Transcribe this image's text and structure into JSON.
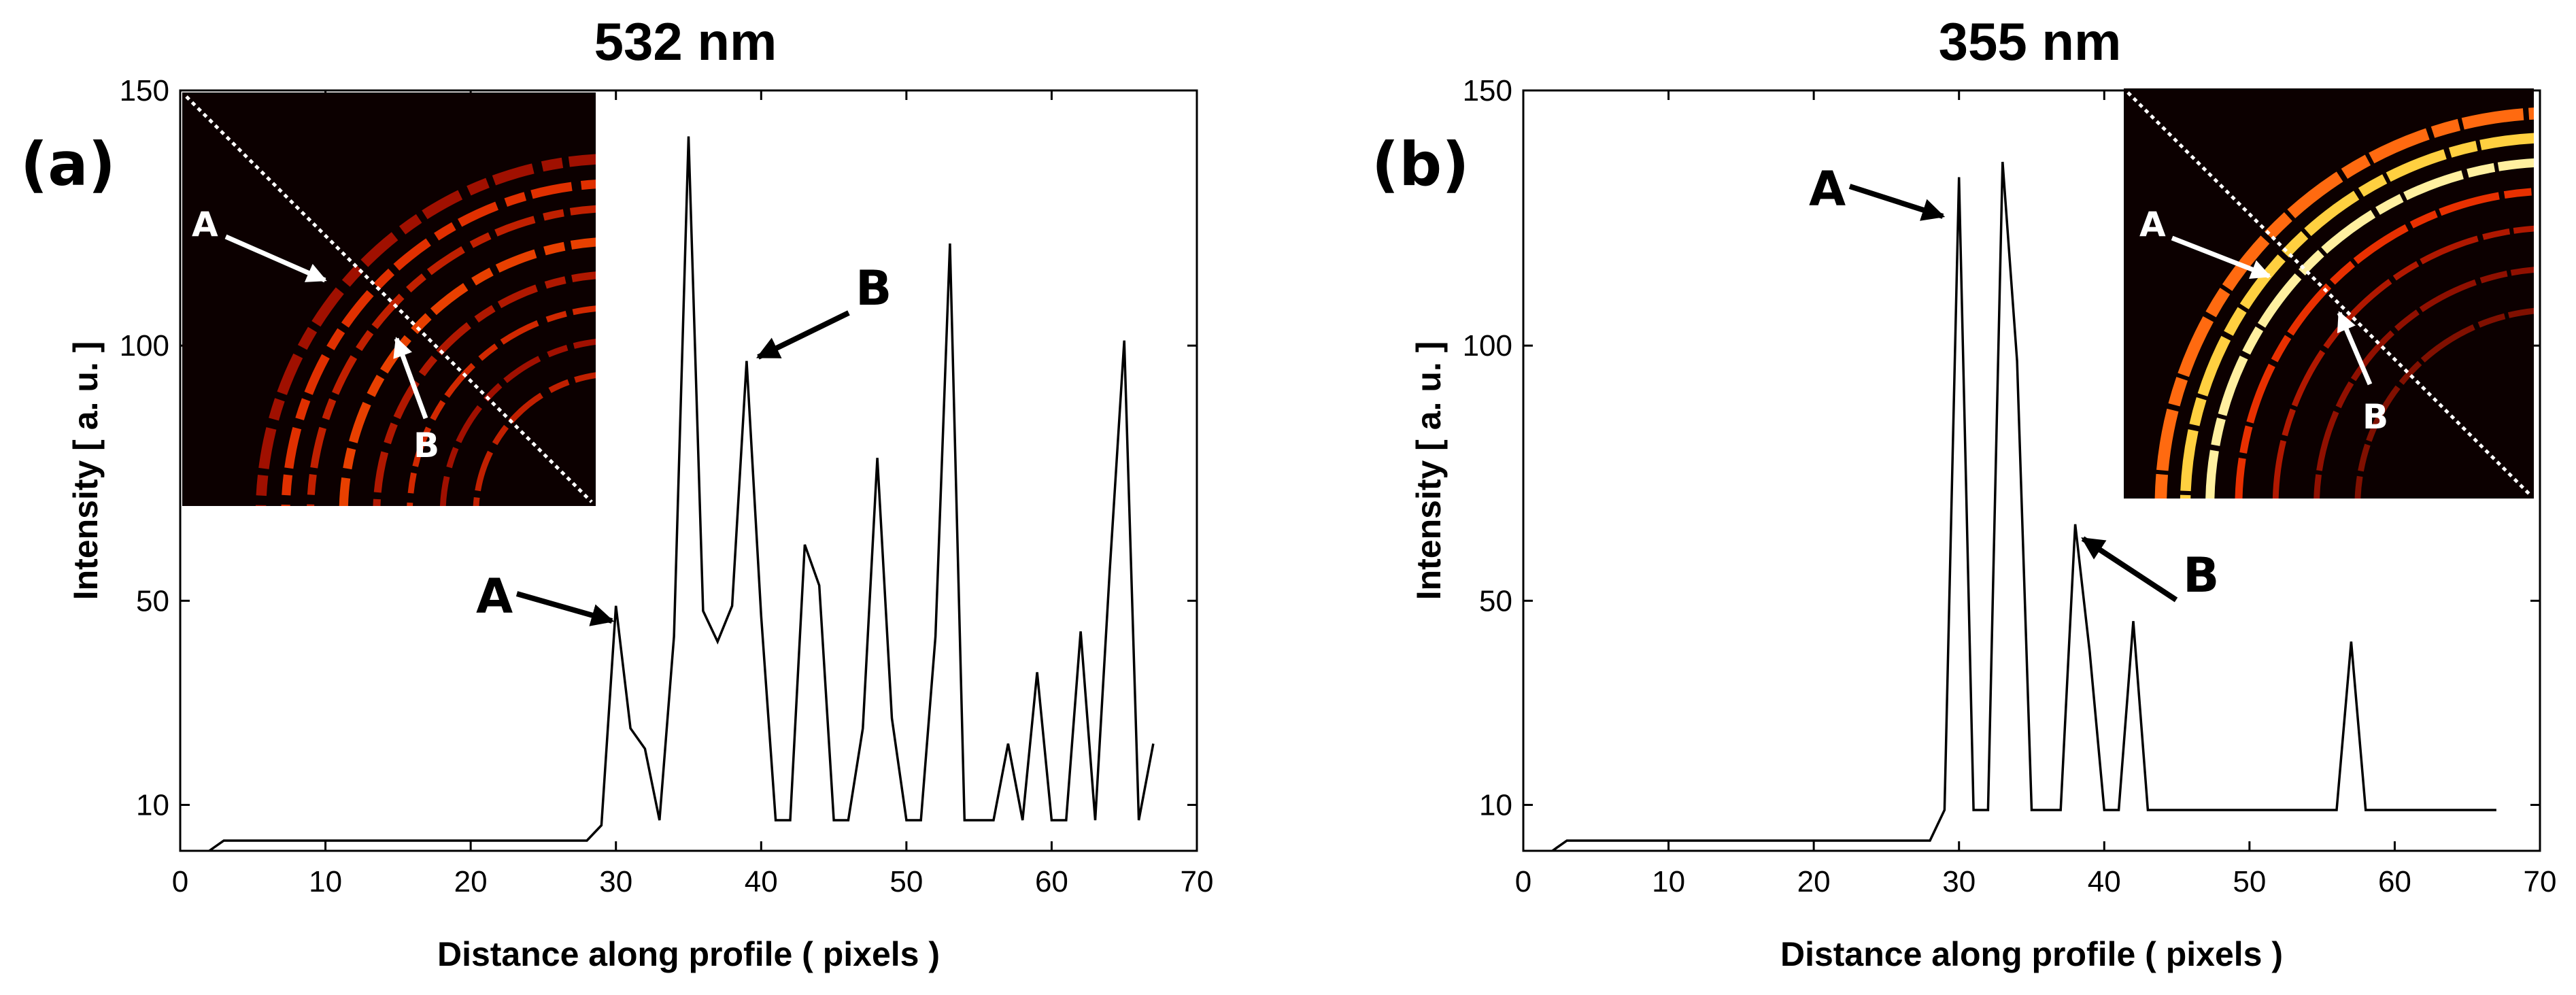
{
  "chart_data": [
    {
      "type": "line",
      "panel_label": "(a)",
      "title": "532 nm",
      "xlabel": "Distance along profile ( pixels )",
      "ylabel": "Intensity [ a. u. ]",
      "xlim": [
        0,
        70
      ],
      "ylim": [
        1,
        150
      ],
      "xticks": [
        0,
        10,
        20,
        30,
        40,
        50,
        60,
        70
      ],
      "yticks": [
        10,
        50,
        100,
        150
      ],
      "x": [
        2,
        3,
        4,
        5,
        6,
        7,
        8,
        9,
        10,
        11,
        12,
        13,
        14,
        15,
        16,
        17,
        18,
        19,
        20,
        21,
        22,
        23,
        24,
        25,
        26,
        27,
        28,
        29,
        30,
        31,
        32,
        33,
        34,
        35,
        36,
        37,
        38,
        39,
        40,
        41,
        42,
        43,
        44,
        45,
        46,
        47,
        48,
        49,
        50,
        51,
        52,
        53,
        54,
        55,
        56,
        57,
        58,
        59,
        60,
        61,
        62,
        63,
        64,
        65,
        66,
        67
      ],
      "y": [
        1,
        3,
        3,
        3,
        3,
        3,
        3,
        3,
        3,
        3,
        3,
        3,
        3,
        3,
        3,
        3,
        3,
        3,
        3,
        3,
        3,
        3,
        3,
        3,
        3,
        3,
        3,
        6,
        49,
        25,
        21,
        7,
        43,
        141,
        48,
        42,
        49,
        97,
        47,
        7,
        7,
        61,
        53,
        7,
        7,
        25,
        78,
        27,
        7,
        7,
        43,
        120,
        7,
        7,
        7,
        22,
        7,
        36,
        7,
        7,
        44,
        7,
        56,
        101,
        7,
        22
      ],
      "annotations": [
        {
          "label": "A",
          "x": 30,
          "y": 49
        },
        {
          "label": "B",
          "x": 39,
          "y": 97
        }
      ],
      "inset_labels": [
        "A",
        "B"
      ]
    },
    {
      "type": "line",
      "panel_label": "(b)",
      "title": "355 nm",
      "xlabel": "Distance along profile ( pixels )",
      "ylabel": "Intensity [ a. u. ]",
      "xlim": [
        0,
        70
      ],
      "ylim": [
        1,
        150
      ],
      "xticks": [
        0,
        10,
        20,
        30,
        40,
        50,
        60,
        70
      ],
      "yticks": [
        10,
        50,
        100,
        150
      ],
      "x": [
        2,
        3,
        4,
        5,
        6,
        7,
        8,
        9,
        10,
        11,
        12,
        13,
        14,
        15,
        16,
        17,
        18,
        19,
        20,
        21,
        22,
        23,
        24,
        25,
        26,
        27,
        28,
        29,
        30,
        31,
        32,
        33,
        34,
        35,
        36,
        37,
        38,
        39,
        40,
        41,
        42,
        43,
        44,
        45,
        46,
        47,
        48,
        49,
        50,
        51,
        52,
        53,
        54,
        55,
        56,
        57,
        58,
        59,
        60,
        61,
        62,
        63,
        64,
        65,
        66,
        67
      ],
      "y": [
        1,
        3,
        3,
        3,
        3,
        3,
        3,
        3,
        3,
        3,
        3,
        3,
        3,
        3,
        3,
        3,
        3,
        3,
        3,
        3,
        3,
        3,
        3,
        3,
        3,
        3,
        3,
        9,
        133,
        9,
        9,
        136,
        97,
        9,
        9,
        9,
        65,
        40,
        9,
        9,
        46,
        9,
        9,
        9,
        9,
        9,
        9,
        9,
        9,
        9,
        9,
        9,
        9,
        9,
        9,
        42,
        9,
        9,
        9,
        9,
        9,
        9,
        9,
        9,
        9,
        9
      ],
      "annotations": [
        {
          "label": "A",
          "x": 30,
          "y": 133
        },
        {
          "label": "B",
          "x": 38,
          "y": 65
        }
      ],
      "inset_labels": [
        "A",
        "B"
      ]
    }
  ]
}
